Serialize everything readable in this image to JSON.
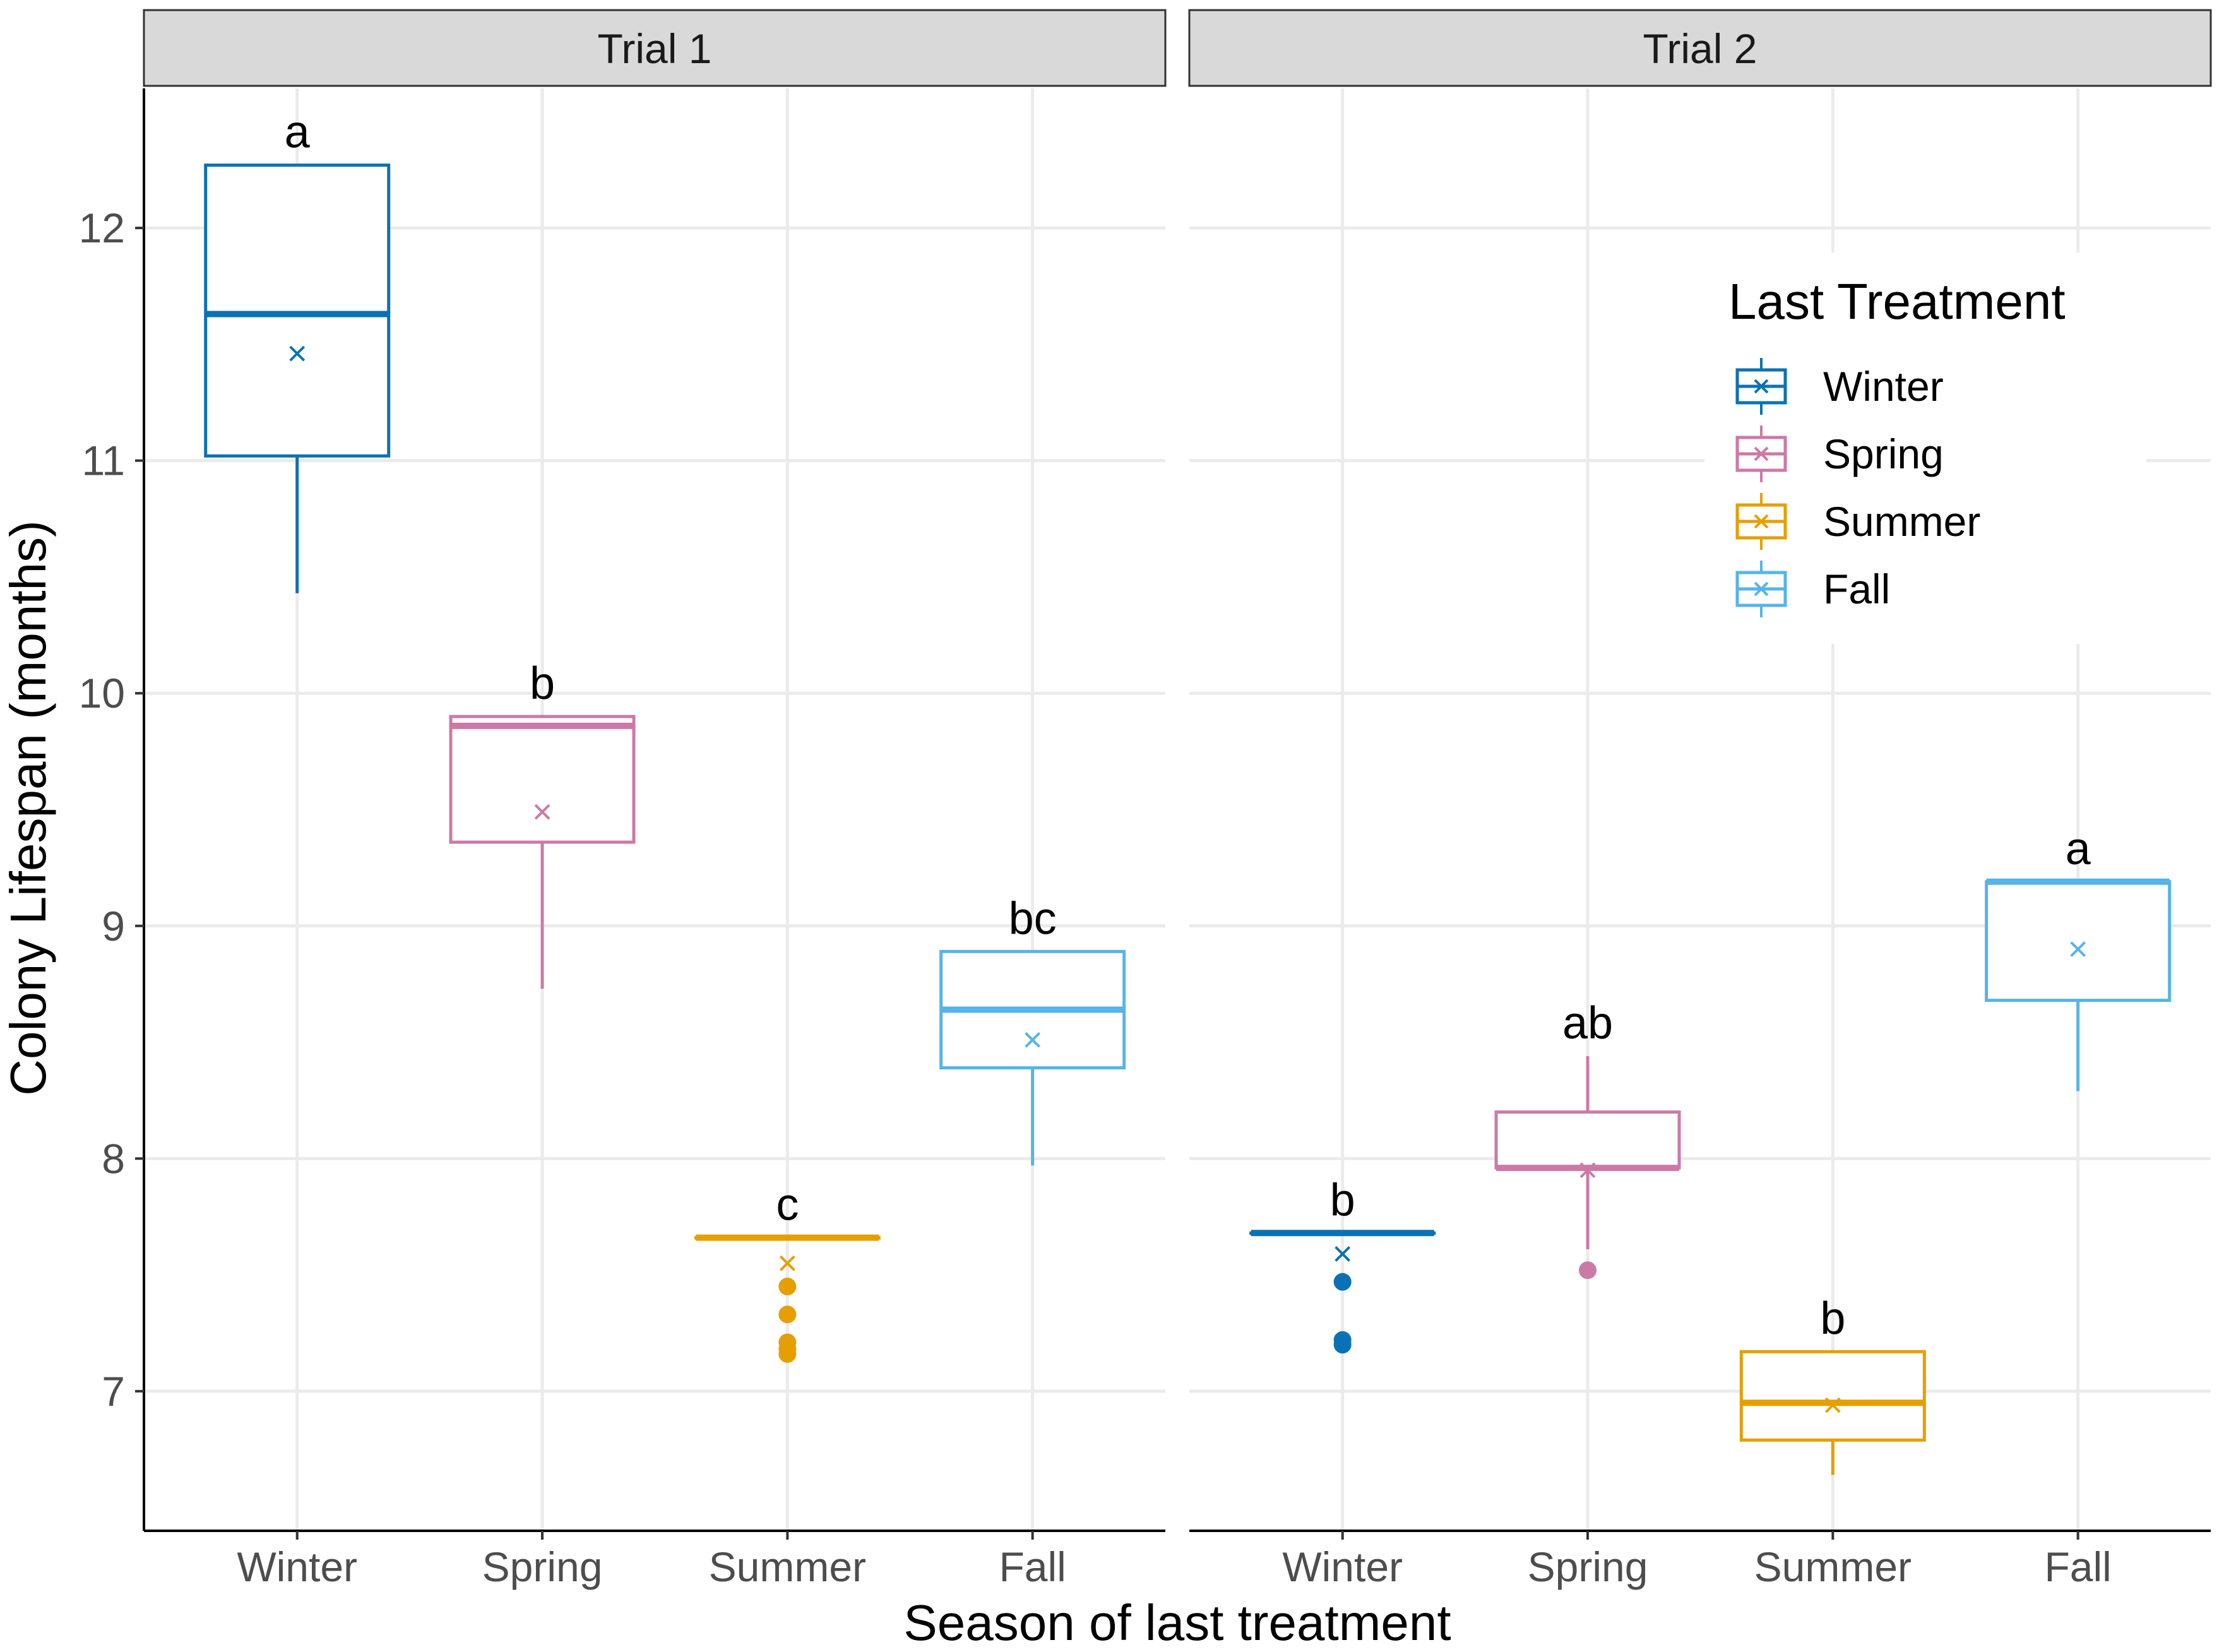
{
  "chart_data": {
    "type": "box",
    "xlabel": "Season of last treatment",
    "ylabel": "Colony Lifespan (months)",
    "ylim": [
      6.4,
      12.6
    ],
    "yticks": [
      7,
      8,
      9,
      10,
      11,
      12
    ],
    "categories": [
      "Winter",
      "Spring",
      "Summer",
      "Fall"
    ],
    "legend": {
      "title": "Last Treatment",
      "position": "top-right",
      "entries": [
        "Winter",
        "Spring",
        "Summer",
        "Fall"
      ]
    },
    "colors": {
      "Winter": "#0a72b4",
      "Spring": "#cc79a7",
      "Summer": "#e69f00",
      "Fall": "#56b4e9"
    },
    "panels": [
      {
        "title": "Trial 1",
        "boxes": [
          {
            "category": "Winter",
            "lower_whisker": 10.43,
            "q1": 11.02,
            "median": 11.63,
            "q3": 12.27,
            "upper_whisker": 12.27,
            "mean": 11.46,
            "outliers": [],
            "letter": "a"
          },
          {
            "category": "Spring",
            "lower_whisker": 8.73,
            "q1": 9.36,
            "median": 9.86,
            "q3": 9.9,
            "upper_whisker": 9.9,
            "mean": 9.49,
            "outliers": [],
            "letter": "b"
          },
          {
            "category": "Summer",
            "lower_whisker": 7.66,
            "q1": 7.66,
            "median": 7.66,
            "q3": 7.66,
            "upper_whisker": 7.66,
            "mean": 7.55,
            "outliers": [
              7.45,
              7.33,
              7.21,
              7.18,
              7.16
            ],
            "letter": "c"
          },
          {
            "category": "Fall",
            "lower_whisker": 7.97,
            "q1": 8.39,
            "median": 8.64,
            "q3": 8.89,
            "upper_whisker": 8.89,
            "mean": 8.51,
            "outliers": [],
            "letter": "bc"
          }
        ]
      },
      {
        "title": "Trial 2",
        "boxes": [
          {
            "category": "Winter",
            "lower_whisker": 7.68,
            "q1": 7.68,
            "median": 7.68,
            "q3": 7.68,
            "upper_whisker": 7.68,
            "mean": 7.59,
            "outliers": [
              7.47,
              7.22,
              7.2
            ],
            "letter": "b"
          },
          {
            "category": "Spring",
            "lower_whisker": 7.61,
            "q1": 7.96,
            "median": 7.96,
            "q3": 8.2,
            "upper_whisker": 8.44,
            "mean": 7.95,
            "outliers": [
              7.52
            ],
            "letter": "ab"
          },
          {
            "category": "Summer",
            "lower_whisker": 6.64,
            "q1": 6.79,
            "median": 6.95,
            "q3": 7.17,
            "upper_whisker": 7.17,
            "mean": 6.94,
            "outliers": [],
            "letter": "b"
          },
          {
            "category": "Fall",
            "lower_whisker": 8.29,
            "q1": 8.68,
            "median": 9.19,
            "q3": 9.19,
            "upper_whisker": 9.19,
            "mean": 8.9,
            "outliers": [],
            "letter": "a"
          }
        ]
      }
    ]
  }
}
